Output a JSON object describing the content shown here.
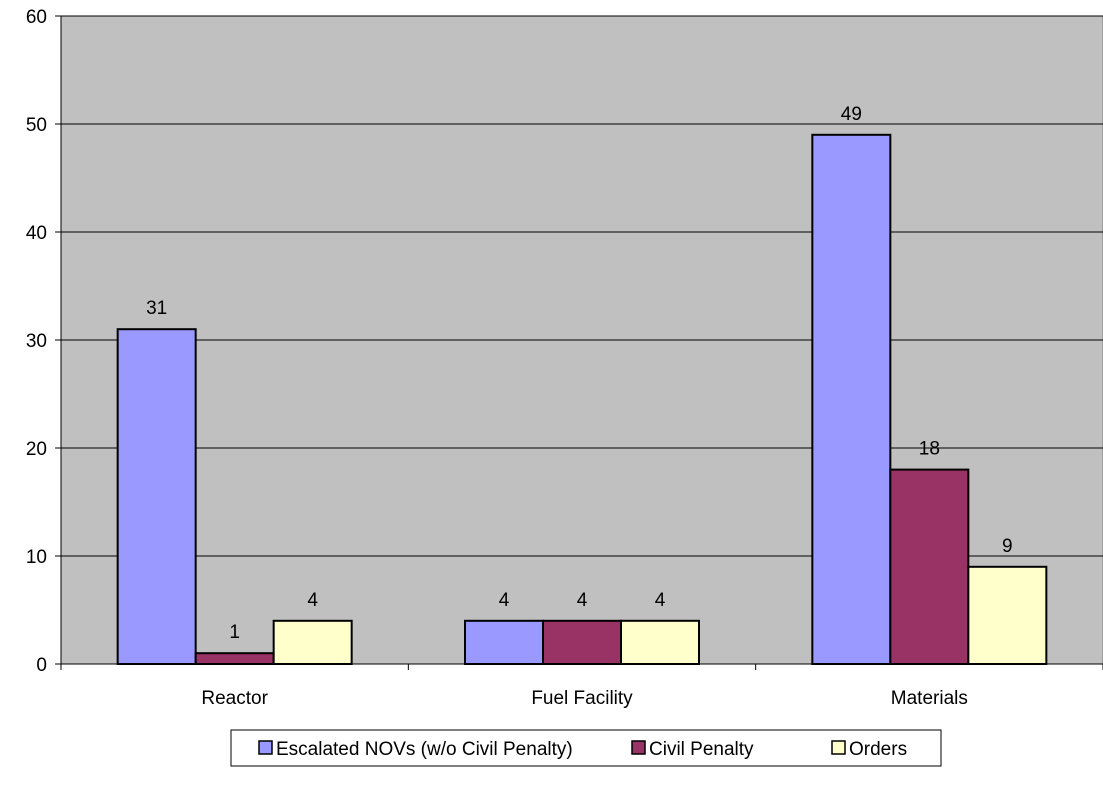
{
  "chart_data": {
    "type": "bar",
    "categories": [
      "Reactor",
      "Fuel Facility",
      "Materials"
    ],
    "series": [
      {
        "name": "Escalated NOVs (w/o Civil Penalty)",
        "values": [
          31,
          4,
          49
        ],
        "color": "#9999ff"
      },
      {
        "name": "Civil Penalty",
        "values": [
          1,
          4,
          18
        ],
        "color": "#993366"
      },
      {
        "name": "Orders",
        "values": [
          4,
          4,
          9
        ],
        "color": "#ffffcc"
      }
    ],
    "yticks": [
      0,
      10,
      20,
      30,
      40,
      50,
      60
    ],
    "ylim": [
      0,
      60
    ],
    "grid": true,
    "plot_background": "#c0c0c0",
    "legend_position": "bottom"
  }
}
